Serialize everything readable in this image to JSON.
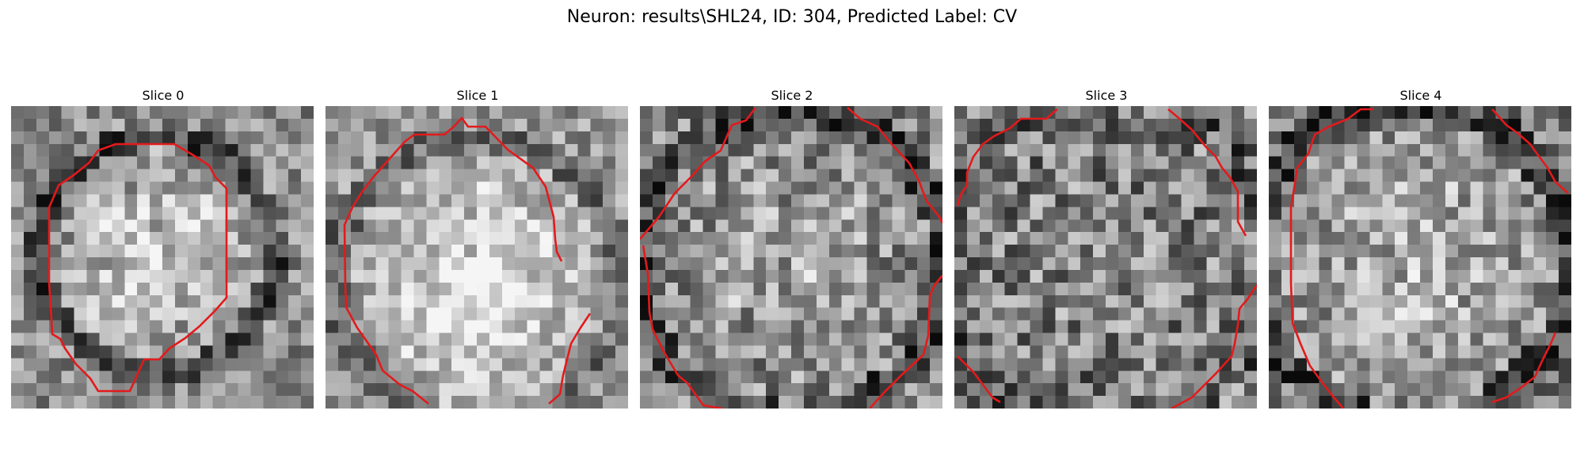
{
  "title": "Neuron: results\\SHL24, ID: 304, Predicted Label: CV",
  "contour_color": "#e31a1c",
  "slices": [
    {
      "label": "Slice 0"
    },
    {
      "label": "Slice 1"
    },
    {
      "label": "Slice 2"
    },
    {
      "label": "Slice 3"
    },
    {
      "label": "Slice 4"
    }
  ]
}
